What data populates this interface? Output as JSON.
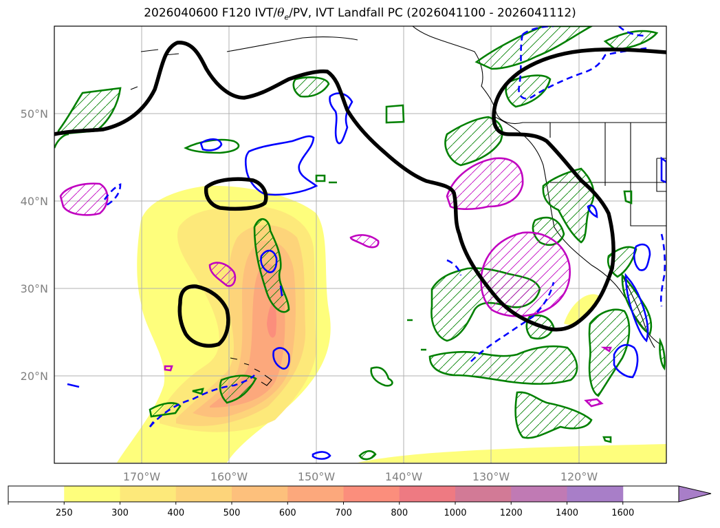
{
  "title": {
    "prefix": "2026040600 F120 IVT/",
    "theta": "θ",
    "theta_sub": "e",
    "suffix": "/PV, IVT Landfall PC (2026041100 - 2026041112)"
  },
  "axes": {
    "lon_labels": [
      "170°W",
      "160°W",
      "150°W",
      "140°W",
      "130°W",
      "120°W"
    ],
    "lat_labels": [
      "50°N",
      "40°N",
      "30°N",
      "20°N"
    ]
  },
  "colorbar": {
    "ticks": [
      "250",
      "300",
      "400",
      "500",
      "600",
      "700",
      "800",
      "1000",
      "1200",
      "1400",
      "1600"
    ],
    "colors": [
      "#ffffff",
      "#fefe7c",
      "#fde97a",
      "#fdd47a",
      "#fdc07c",
      "#fca87c",
      "#fb8e7c",
      "#ee7a82",
      "#d27a96",
      "#c07ab4",
      "#a87ec8"
    ]
  },
  "legend_colors": {
    "pv_contour": "#000000",
    "theta_warm": "#008000",
    "theta_pos": "#c000c0",
    "theta_neg": "#0000ff"
  }
}
